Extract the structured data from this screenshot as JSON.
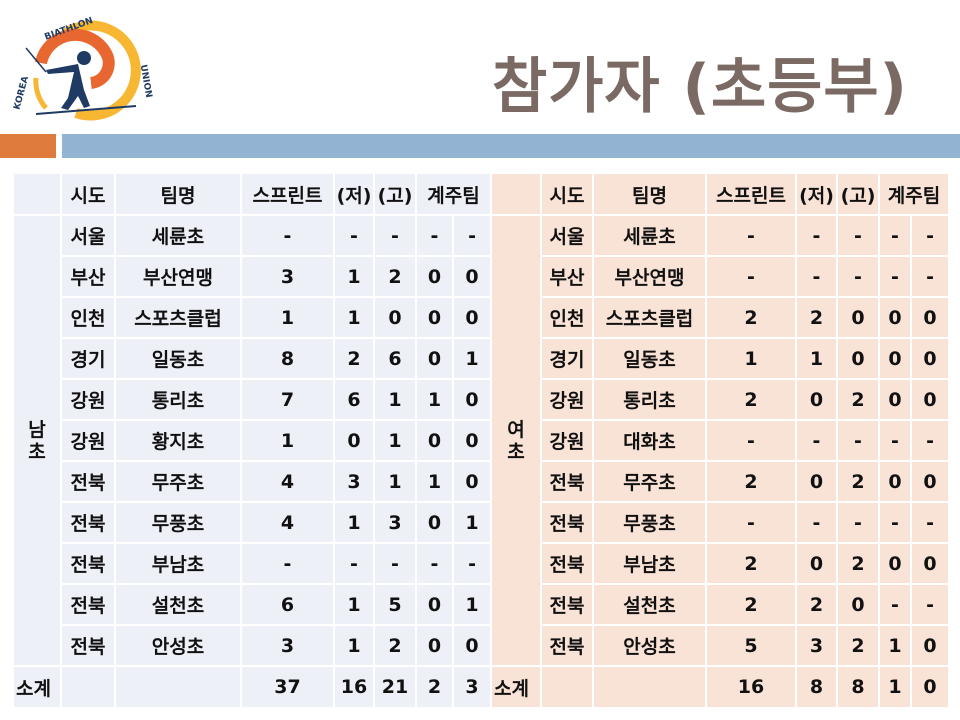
{
  "logo": {
    "text": "KOREA BIATHLON UNION",
    "colors": {
      "orange": "#e8662f",
      "yellow": "#f7b733",
      "navy": "#1f3b64"
    }
  },
  "title": "참가자 (초등부)",
  "colors": {
    "title": "#7b6a63",
    "accent_orange": "#e07b3e",
    "accent_blue": "#93b3d2",
    "male_bg": "#eef0f7",
    "female_bg": "#f9e3d6"
  },
  "headers": {
    "region": "시도",
    "team": "팀명",
    "sprint": "스프린트",
    "low": "(저)",
    "high": "(고)",
    "relay": "계주팀"
  },
  "male": {
    "group": "남초",
    "rows": [
      [
        "서울",
        "세륜초",
        "-",
        "-",
        "-",
        "-",
        "-"
      ],
      [
        "부산",
        "부산연맹",
        "3",
        "1",
        "2",
        "0",
        "0"
      ],
      [
        "인천",
        "스포츠클럽",
        "1",
        "1",
        "0",
        "0",
        "0"
      ],
      [
        "경기",
        "일동초",
        "8",
        "2",
        "6",
        "0",
        "1"
      ],
      [
        "강원",
        "통리초",
        "7",
        "6",
        "1",
        "1",
        "0"
      ],
      [
        "강원",
        "황지초",
        "1",
        "0",
        "1",
        "0",
        "0"
      ],
      [
        "전북",
        "무주초",
        "4",
        "3",
        "1",
        "1",
        "0"
      ],
      [
        "전북",
        "무풍초",
        "4",
        "1",
        "3",
        "0",
        "1"
      ],
      [
        "전북",
        "부남초",
        "-",
        "-",
        "-",
        "-",
        "-"
      ],
      [
        "전북",
        "설천초",
        "6",
        "1",
        "5",
        "0",
        "1"
      ],
      [
        "전북",
        "안성초",
        "3",
        "1",
        "2",
        "0",
        "0"
      ]
    ],
    "subtotal": {
      "label": "소계",
      "values": [
        "37",
        "16",
        "21",
        "2",
        "3"
      ]
    }
  },
  "female": {
    "group": "여초",
    "rows": [
      [
        "서울",
        "세륜초",
        "-",
        "-",
        "-",
        "-",
        "-"
      ],
      [
        "부산",
        "부산연맹",
        "-",
        "-",
        "-",
        "-",
        "-"
      ],
      [
        "인천",
        "스포츠클럽",
        "2",
        "2",
        "0",
        "0",
        "0"
      ],
      [
        "경기",
        "일동초",
        "1",
        "1",
        "0",
        "0",
        "0"
      ],
      [
        "강원",
        "통리초",
        "2",
        "0",
        "2",
        "0",
        "0"
      ],
      [
        "강원",
        "대화초",
        "-",
        "-",
        "-",
        "-",
        "-"
      ],
      [
        "전북",
        "무주초",
        "2",
        "0",
        "2",
        "0",
        "0"
      ],
      [
        "전북",
        "무풍초",
        "-",
        "-",
        "-",
        "-",
        "-"
      ],
      [
        "전북",
        "부남초",
        "2",
        "0",
        "2",
        "0",
        "0"
      ],
      [
        "전북",
        "설천초",
        "2",
        "2",
        "0",
        "-",
        "-"
      ],
      [
        "전북",
        "안성초",
        "5",
        "3",
        "2",
        "1",
        "0"
      ]
    ],
    "subtotal": {
      "label": "소계",
      "values": [
        "16",
        "8",
        "8",
        "1",
        "0"
      ]
    }
  }
}
